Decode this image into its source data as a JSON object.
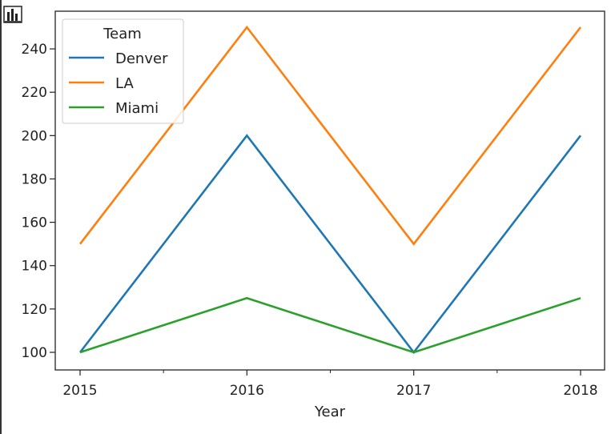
{
  "chart_data": {
    "type": "line",
    "x": [
      2015,
      2016,
      2017,
      2018
    ],
    "x_tick_labels": [
      "2015",
      "2016",
      "2017",
      "2018"
    ],
    "xlabel": "Year",
    "ylabel": "",
    "ylim": [
      95,
      255
    ],
    "y_ticks": [
      100,
      120,
      140,
      160,
      180,
      200,
      220,
      240
    ],
    "y_tick_labels": [
      "100",
      "120",
      "140",
      "160",
      "180",
      "200",
      "220",
      "240"
    ],
    "grid": false,
    "legend": {
      "title": "Team",
      "position": "upper-left"
    },
    "series": [
      {
        "name": "Denver",
        "color": "#1f77b4",
        "values": [
          100,
          200,
          100,
          200
        ]
      },
      {
        "name": "LA",
        "color": "#ff7f0e",
        "values": [
          150,
          250,
          150,
          250
        ]
      },
      {
        "name": "Miami",
        "color": "#2ca02c",
        "values": [
          100,
          125,
          100,
          125
        ]
      }
    ]
  },
  "icons": {
    "corner": "bar-chart-icon"
  }
}
